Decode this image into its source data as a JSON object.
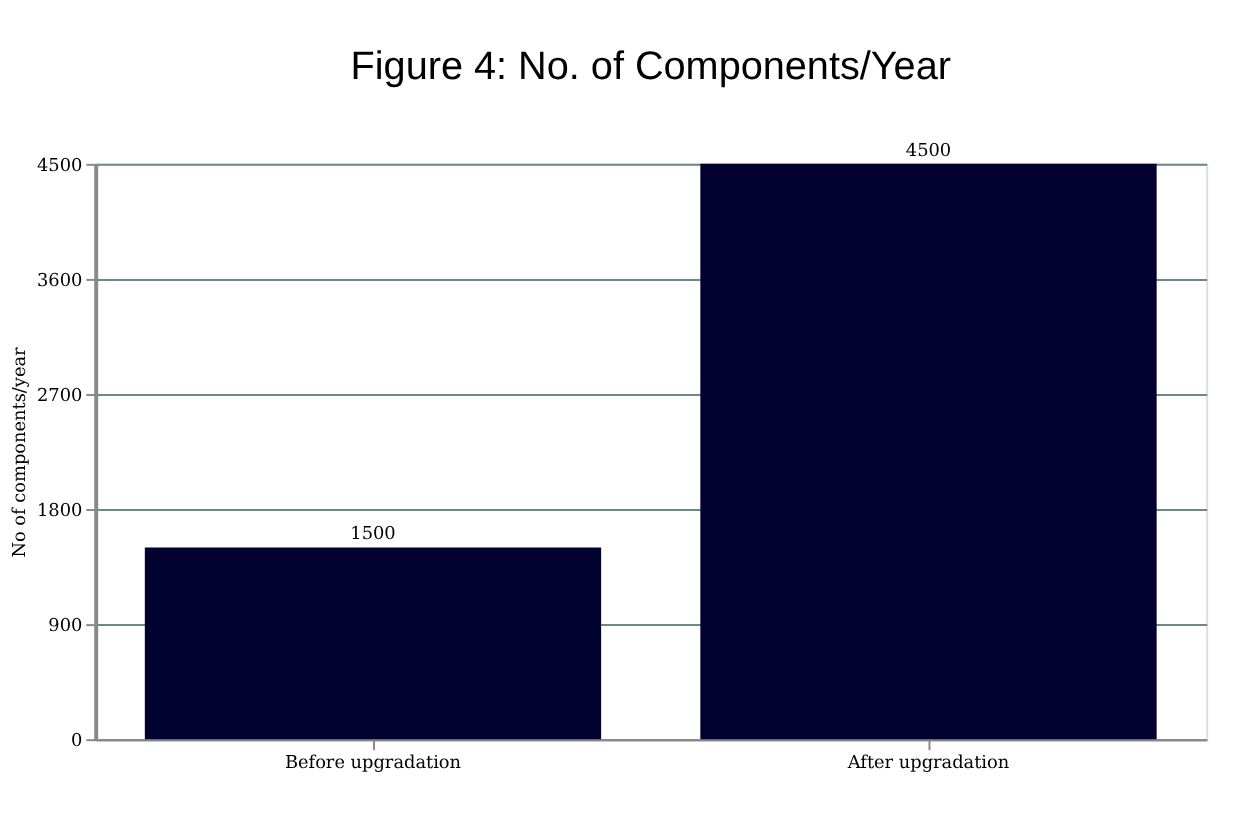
{
  "chart_data": {
    "type": "bar",
    "title": "Figure 4: No. of Components/Year",
    "ylabel": "No of components/year",
    "categories": [
      "Before upgradation",
      "After upgradation"
    ],
    "values": [
      1500,
      4500
    ],
    "color": "#02022e",
    "ylim": [
      0,
      4500
    ],
    "yticks": [
      0,
      900,
      1800,
      2700,
      3600,
      4500
    ],
    "grid": "y",
    "data_labels": true
  }
}
